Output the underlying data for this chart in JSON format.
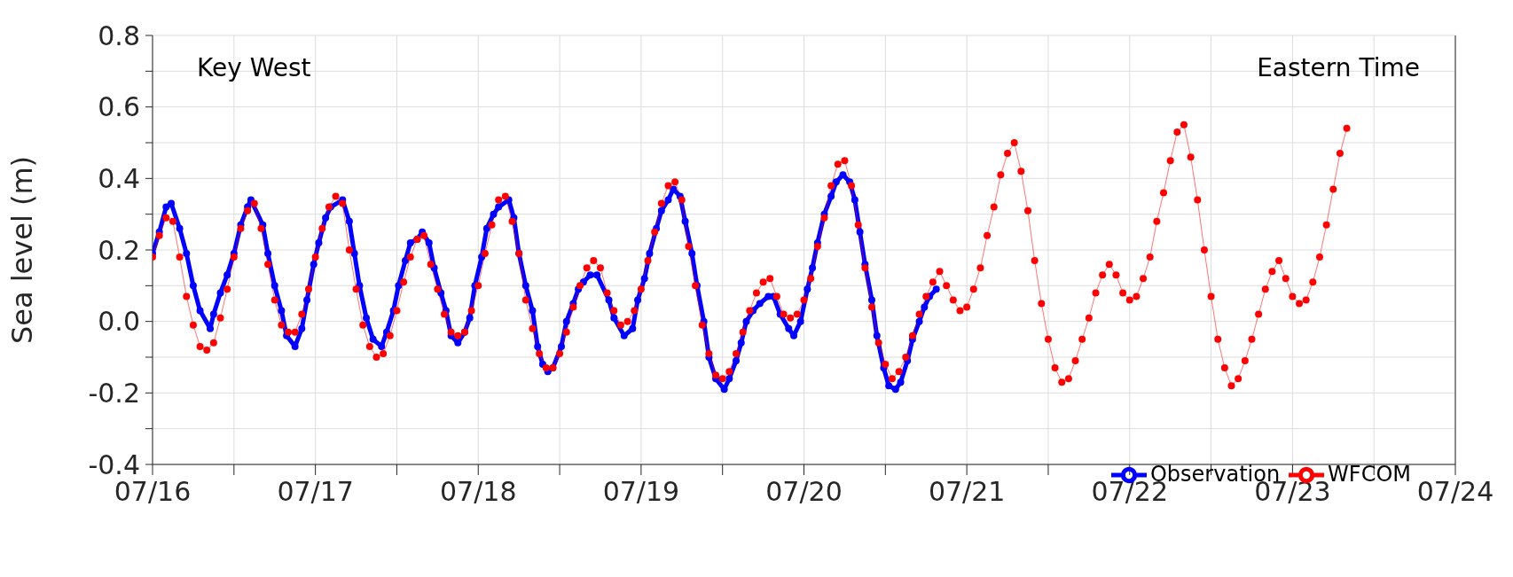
{
  "chart_data": {
    "type": "line",
    "ylabel": "Sea level (m)",
    "annotations": [
      "Key West",
      "Eastern Time"
    ],
    "xlim": [
      "--07-16",
      "--07-24"
    ],
    "xticks": [
      {
        "value": "--07-16",
        "label": "07/16"
      },
      {
        "value": "--07-16T12:00",
        "label": null
      },
      {
        "value": "--07-17",
        "label": "07/17"
      },
      {
        "value": "--07-17T12:00",
        "label": null
      },
      {
        "value": "--07-18",
        "label": "07/18"
      },
      {
        "value": "--07-18T12:00",
        "label": null
      },
      {
        "value": "--07-19",
        "label": "07/19"
      },
      {
        "value": "--07-19T12:00",
        "label": null
      },
      {
        "value": "--07-20",
        "label": "07/20"
      },
      {
        "value": "--07-20T12:00",
        "label": null
      },
      {
        "value": "--07-21",
        "label": "07/21"
      },
      {
        "value": "--07-21T12:00",
        "label": null
      },
      {
        "value": "--07-22",
        "label": "07/22"
      },
      {
        "value": "--07-22T12:00",
        "label": null
      },
      {
        "value": "--07-23",
        "label": "07/23"
      },
      {
        "value": "--07-23T12:00",
        "label": null
      },
      {
        "value": "--07-24",
        "label": "07/24"
      }
    ],
    "ylim": [
      -0.4,
      0.8
    ],
    "yticks": [
      -0.4,
      {
        "value": -0.3,
        "label": null
      },
      -0.2,
      {
        "value": -0.1,
        "label": null
      },
      {
        "value": 0,
        "label": "0.0"
      },
      {
        "value": 0.1,
        "label": null
      },
      0.2,
      {
        "value": 0.3,
        "label": null
      },
      0.4,
      {
        "value": 0.5,
        "label": null
      },
      0.6,
      {
        "value": 0.7,
        "label": null
      },
      0.8
    ],
    "grid": true,
    "legend": "bottom right",
    "marker": "circle",
    "series": [
      {
        "name": "Observation",
        "color": "#0000ff",
        "x": [
          "--07-16T00:00",
          "--07-16T01:00",
          "--07-16T02:00",
          "--07-16T02:45",
          "--07-16T04:00",
          "--07-16T05:00",
          "--07-16T06:00",
          "--07-16T07:00",
          "--07-16T08:30",
          "--07-16T09:00",
          "--07-16T10:00",
          "--07-16T11:00",
          "--07-16T12:00",
          "--07-16T13:00",
          "--07-16T14:00",
          "--07-16T14:30",
          "--07-16T16:15",
          "--07-16T17:00",
          "--07-16T18:00",
          "--07-16T19:00",
          "--07-16T19:45",
          "--07-16T21:00",
          "--07-16T22:00",
          "--07-16T22:45",
          "--07-16T23:45",
          "--07-17T00:30",
          "--07-17T01:30",
          "--07-17T02:15",
          "--07-17T04:00",
          "--07-17T05:00",
          "--07-17T05:45",
          "--07-17T06:30",
          "--07-17T07:30",
          "--07-17T08:30",
          "--07-17T09:45",
          "--07-17T10:30",
          "--07-17T11:30",
          "--07-17T12:15",
          "--07-17T13:15",
          "--07-17T14:00",
          "--07-17T15:00",
          "--07-17T15:45",
          "--07-17T16:45",
          "--07-17T17:30",
          "--07-17T18:30",
          "--07-17T19:15",
          "--07-17T20:00",
          "--07-17T21:00",
          "--07-17T22:00",
          "--07-17T22:45",
          "--07-17T23:30",
          "--07-18T00:30",
          "--07-18T01:15",
          "--07-18T02:15",
          "--07-18T03:00",
          "--07-18T04:30",
          "--07-18T05:15",
          "--07-18T06:00",
          "--07-18T07:00",
          "--07-18T08:00",
          "--07-18T08:45",
          "--07-18T09:30",
          "--07-18T10:15",
          "--07-18T11:00",
          "--07-18T12:15",
          "--07-18T13:00",
          "--07-18T14:00",
          "--07-18T14:45",
          "--07-18T15:30",
          "--07-18T16:30",
          "--07-18T17:30",
          "--07-18T19:15",
          "--07-18T20:00",
          "--07-18T21:30",
          "--07-18T22:45",
          "--07-18T23:30",
          "--07-19T00:30",
          "--07-19T01:15",
          "--07-19T02:15",
          "--07-19T03:00",
          "--07-19T04:00",
          "--07-19T04:45",
          "--07-19T05:45",
          "--07-19T06:30",
          "--07-19T07:30",
          "--07-19T08:15",
          "--07-19T09:15",
          "--07-19T10:00",
          "--07-19T11:00",
          "--07-19T12:15",
          "--07-19T13:00",
          "--07-19T14:00",
          "--07-19T14:45",
          "--07-19T15:30",
          "--07-19T16:30",
          "--07-19T17:30",
          "--07-19T18:45",
          "--07-19T19:30",
          "--07-19T20:30",
          "--07-19T21:45",
          "--07-19T22:30",
          "--07-19T23:30",
          "--07-20T00:30",
          "--07-20T01:15",
          "--07-20T02:00",
          "--07-20T03:00",
          "--07-20T04:00",
          "--07-20T04:45",
          "--07-20T05:45",
          "--07-20T06:45",
          "--07-20T07:30",
          "--07-20T08:15",
          "--07-20T09:00",
          "--07-20T10:00",
          "--07-20T10:45",
          "--07-20T11:45",
          "--07-20T12:30",
          "--07-20T13:30",
          "--07-20T14:15",
          "--07-20T15:15",
          "--07-20T16:00",
          "--07-20T17:00",
          "--07-20T17:45",
          "--07-20T18:30",
          "--07-20T19:30"
        ],
        "values": [
          0.19,
          0.25,
          0.32,
          0.33,
          0.26,
          0.19,
          0.1,
          0.03,
          -0.02,
          0.02,
          0.08,
          0.13,
          0.19,
          0.27,
          0.32,
          0.34,
          0.27,
          0.19,
          0.1,
          0.03,
          -0.04,
          -0.07,
          -0.02,
          0.06,
          0.16,
          0.22,
          0.29,
          0.32,
          0.34,
          0.28,
          0.19,
          0.1,
          0.01,
          -0.05,
          -0.07,
          -0.03,
          0.03,
          0.1,
          0.17,
          0.22,
          0.23,
          0.25,
          0.22,
          0.15,
          0.08,
          0.03,
          -0.04,
          -0.06,
          -0.03,
          0.01,
          0.1,
          0.18,
          0.26,
          0.3,
          0.32,
          0.34,
          0.29,
          0.19,
          0.1,
          0.03,
          -0.07,
          -0.12,
          -0.14,
          -0.13,
          -0.07,
          0.0,
          0.05,
          0.09,
          0.11,
          0.13,
          0.13,
          0.06,
          0.01,
          -0.04,
          -0.02,
          0.06,
          0.12,
          0.19,
          0.26,
          0.31,
          0.34,
          0.37,
          0.35,
          0.28,
          0.19,
          0.1,
          0.0,
          -0.1,
          -0.16,
          -0.19,
          -0.16,
          -0.11,
          -0.06,
          0.0,
          0.03,
          0.05,
          0.07,
          0.07,
          0.02,
          -0.02,
          -0.04,
          0.0,
          0.09,
          0.15,
          0.22,
          0.3,
          0.35,
          0.39,
          0.41,
          0.39,
          0.34,
          0.25,
          0.16,
          0.06,
          -0.04,
          -0.13,
          -0.18,
          -0.19,
          -0.17,
          -0.11,
          -0.05,
          0.0,
          0.04,
          0.07,
          0.09
        ]
      },
      {
        "name": "WFCOM",
        "color": "#ff0000",
        "x": [
          "--07-16T00:00",
          "--07-16T01:00",
          "--07-16T02:00",
          "--07-16T03:00",
          "--07-16T04:00",
          "--07-16T05:00",
          "--07-16T06:00",
          "--07-16T07:00",
          "--07-16T08:00",
          "--07-16T09:00",
          "--07-16T10:00",
          "--07-16T11:00",
          "--07-16T12:00",
          "--07-16T13:00",
          "--07-16T14:00",
          "--07-16T15:00",
          "--07-16T16:00",
          "--07-16T17:00",
          "--07-16T18:00",
          "--07-16T19:00",
          "--07-16T20:00",
          "--07-16T21:00",
          "--07-16T22:00",
          "--07-16T23:00",
          "--07-17T00:00",
          "--07-17T01:00",
          "--07-17T02:00",
          "--07-17T03:00",
          "--07-17T04:00",
          "--07-17T05:00",
          "--07-17T06:00",
          "--07-17T07:00",
          "--07-17T08:00",
          "--07-17T09:00",
          "--07-17T10:00",
          "--07-17T11:00",
          "--07-17T12:00",
          "--07-17T13:00",
          "--07-17T14:00",
          "--07-17T15:00",
          "--07-17T16:00",
          "--07-17T17:00",
          "--07-17T18:00",
          "--07-17T19:00",
          "--07-17T20:00",
          "--07-17T21:00",
          "--07-17T22:00",
          "--07-17T23:00",
          "--07-18T00:00",
          "--07-18T01:00",
          "--07-18T02:00",
          "--07-18T03:00",
          "--07-18T04:00",
          "--07-18T05:00",
          "--07-18T06:00",
          "--07-18T07:00",
          "--07-18T08:00",
          "--07-18T09:00",
          "--07-18T10:00",
          "--07-18T11:00",
          "--07-18T12:00",
          "--07-18T13:00",
          "--07-18T14:00",
          "--07-18T15:00",
          "--07-18T16:00",
          "--07-18T17:00",
          "--07-18T18:00",
          "--07-18T19:00",
          "--07-18T20:00",
          "--07-18T21:00",
          "--07-18T22:00",
          "--07-18T23:00",
          "--07-19T00:00",
          "--07-19T01:00",
          "--07-19T02:00",
          "--07-19T03:00",
          "--07-19T04:00",
          "--07-19T05:00",
          "--07-19T06:00",
          "--07-19T07:00",
          "--07-19T08:00",
          "--07-19T09:00",
          "--07-19T10:00",
          "--07-19T11:00",
          "--07-19T12:00",
          "--07-19T13:00",
          "--07-19T14:00",
          "--07-19T15:00",
          "--07-19T16:00",
          "--07-19T17:00",
          "--07-19T18:00",
          "--07-19T19:00",
          "--07-19T20:00",
          "--07-19T21:00",
          "--07-19T22:00",
          "--07-19T23:00",
          "--07-20T00:00",
          "--07-20T01:00",
          "--07-20T02:00",
          "--07-20T03:00",
          "--07-20T04:00",
          "--07-20T05:00",
          "--07-20T06:00",
          "--07-20T07:00",
          "--07-20T08:00",
          "--07-20T09:00",
          "--07-20T10:00",
          "--07-20T11:00",
          "--07-20T12:00",
          "--07-20T13:00",
          "--07-20T14:00",
          "--07-20T15:00",
          "--07-20T16:00",
          "--07-20T17:00",
          "--07-20T18:00",
          "--07-20T19:00",
          "--07-20T20:00",
          "--07-20T21:00",
          "--07-20T22:00",
          "--07-20T23:00",
          "--07-21T00:00",
          "--07-21T01:00",
          "--07-21T02:00",
          "--07-21T03:00",
          "--07-21T04:00",
          "--07-21T05:00",
          "--07-21T06:00",
          "--07-21T07:00",
          "--07-21T08:00",
          "--07-21T09:00",
          "--07-21T10:00",
          "--07-21T11:00",
          "--07-21T12:00",
          "--07-21T13:00",
          "--07-21T14:00",
          "--07-21T15:00",
          "--07-21T16:00",
          "--07-21T17:00",
          "--07-21T18:00",
          "--07-21T19:00",
          "--07-21T20:00",
          "--07-21T21:00",
          "--07-21T22:00",
          "--07-21T23:00",
          "--07-22T00:00",
          "--07-22T01:00",
          "--07-22T02:00",
          "--07-22T03:00",
          "--07-22T04:00",
          "--07-22T05:00",
          "--07-22T06:00",
          "--07-22T07:00",
          "--07-22T08:00",
          "--07-22T09:00",
          "--07-22T10:00",
          "--07-22T11:00",
          "--07-22T12:00",
          "--07-22T13:00",
          "--07-22T14:00",
          "--07-22T15:00",
          "--07-22T16:00",
          "--07-22T17:00",
          "--07-22T18:00",
          "--07-22T19:00",
          "--07-22T20:00",
          "--07-22T21:00",
          "--07-22T22:00",
          "--07-22T23:00",
          "--07-23T00:00",
          "--07-23T01:00",
          "--07-23T02:00",
          "--07-23T03:00",
          "--07-23T04:00",
          "--07-23T05:00",
          "--07-23T06:00",
          "--07-23T07:00",
          "--07-23T08:00"
        ],
        "values": [
          0.18,
          0.24,
          0.29,
          0.28,
          0.18,
          0.07,
          -0.01,
          -0.07,
          -0.08,
          -0.06,
          0.01,
          0.09,
          0.18,
          0.26,
          0.31,
          0.33,
          0.26,
          0.16,
          0.06,
          -0.01,
          -0.03,
          -0.03,
          0.02,
          0.09,
          0.18,
          0.26,
          0.32,
          0.35,
          0.33,
          0.2,
          0.09,
          -0.01,
          -0.07,
          -0.1,
          -0.09,
          -0.04,
          0.03,
          0.11,
          0.18,
          0.23,
          0.24,
          0.16,
          0.09,
          0.02,
          -0.03,
          -0.04,
          -0.03,
          0.03,
          0.1,
          0.19,
          0.27,
          0.34,
          0.35,
          0.28,
          0.19,
          0.06,
          -0.02,
          -0.09,
          -0.13,
          -0.13,
          -0.09,
          -0.03,
          0.04,
          0.1,
          0.15,
          0.17,
          0.15,
          0.08,
          0.03,
          -0.01,
          0.0,
          0.03,
          0.09,
          0.17,
          0.25,
          0.33,
          0.38,
          0.39,
          0.34,
          0.21,
          0.1,
          -0.01,
          -0.09,
          -0.15,
          -0.16,
          -0.14,
          -0.09,
          -0.03,
          0.03,
          0.08,
          0.11,
          0.12,
          0.07,
          0.02,
          0.01,
          0.02,
          0.06,
          0.12,
          0.21,
          0.29,
          0.38,
          0.44,
          0.45,
          0.38,
          0.27,
          0.15,
          0.04,
          -0.06,
          -0.12,
          -0.16,
          -0.14,
          -0.1,
          -0.04,
          0.02,
          0.07,
          0.11,
          0.14,
          0.1,
          0.06,
          0.03,
          0.04,
          0.09,
          0.15,
          0.24,
          0.32,
          0.41,
          0.47,
          0.5,
          0.42,
          0.31,
          0.17,
          0.05,
          -0.05,
          -0.13,
          -0.17,
          -0.16,
          -0.11,
          -0.05,
          0.01,
          0.08,
          0.13,
          0.16,
          0.13,
          0.08,
          0.06,
          0.07,
          0.12,
          0.18,
          0.28,
          0.36,
          0.45,
          0.53,
          0.55,
          0.46,
          0.34,
          0.2,
          0.07,
          -0.05,
          -0.13,
          -0.18,
          -0.16,
          -0.11,
          -0.05,
          0.02,
          0.09,
          0.14,
          0.17,
          0.12,
          0.07,
          0.05,
          0.06,
          0.11,
          0.18,
          0.27,
          0.37,
          0.47,
          0.54
        ]
      }
    ]
  }
}
